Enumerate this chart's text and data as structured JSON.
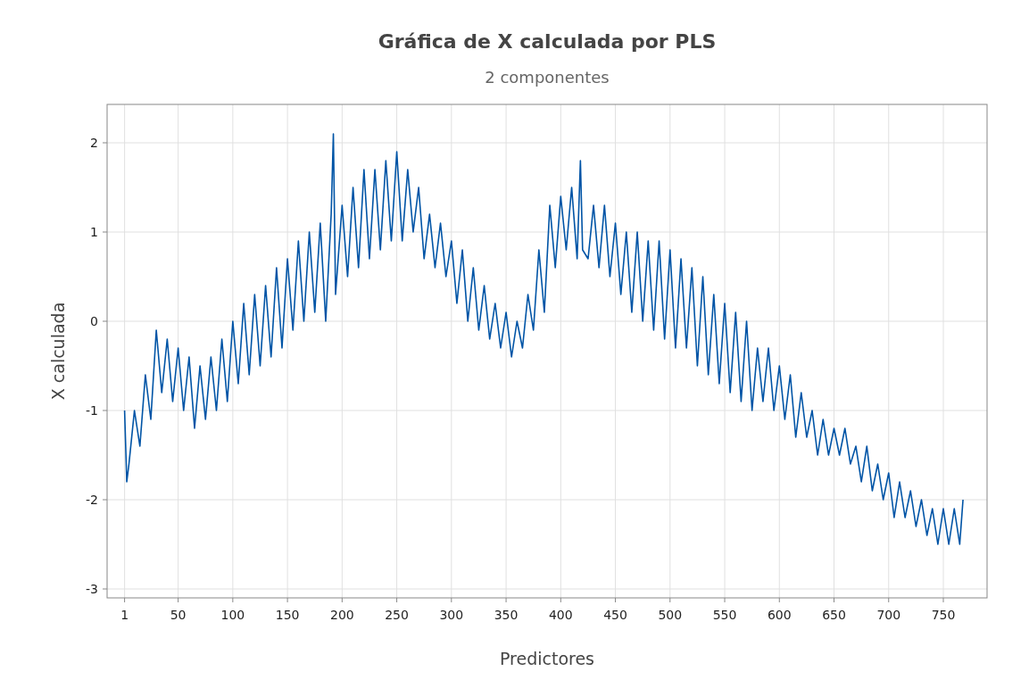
{
  "chart_data": {
    "type": "line",
    "title": "Gráfica de X calculada por PLS",
    "subtitle": "2 componentes",
    "xlabel": "Predictores",
    "ylabel": "X calculada",
    "xlim": [
      -15,
      790
    ],
    "ylim": [
      -3.1,
      2.43
    ],
    "xticks": [
      1,
      50,
      100,
      150,
      200,
      250,
      300,
      350,
      400,
      450,
      500,
      550,
      600,
      650,
      700,
      750
    ],
    "yticks": [
      -3,
      -2,
      -1,
      0,
      1,
      2
    ],
    "grid": true,
    "marker": "none",
    "series": [
      {
        "color": "#0054a6",
        "x": [
          1,
          3,
          5,
          10,
          15,
          20,
          25,
          30,
          35,
          40,
          45,
          50,
          55,
          60,
          65,
          70,
          75,
          80,
          85,
          90,
          95,
          100,
          105,
          110,
          115,
          120,
          125,
          130,
          135,
          140,
          145,
          150,
          155,
          160,
          165,
          170,
          175,
          180,
          185,
          190,
          192,
          194,
          200,
          205,
          210,
          215,
          220,
          225,
          230,
          235,
          240,
          245,
          250,
          255,
          260,
          265,
          270,
          275,
          280,
          285,
          290,
          295,
          300,
          305,
          310,
          315,
          320,
          325,
          330,
          335,
          340,
          345,
          350,
          355,
          360,
          365,
          370,
          375,
          380,
          385,
          390,
          395,
          400,
          405,
          410,
          415,
          418,
          420,
          425,
          430,
          435,
          440,
          445,
          450,
          455,
          460,
          465,
          470,
          475,
          480,
          485,
          490,
          495,
          500,
          505,
          510,
          515,
          520,
          525,
          530,
          535,
          540,
          545,
          550,
          555,
          560,
          565,
          570,
          575,
          580,
          585,
          590,
          595,
          600,
          605,
          610,
          615,
          620,
          625,
          630,
          635,
          640,
          645,
          650,
          655,
          660,
          665,
          670,
          675,
          680,
          685,
          690,
          695,
          700,
          705,
          710,
          715,
          720,
          725,
          730,
          735,
          740,
          745,
          750,
          755,
          760,
          765,
          768
        ],
        "values": [
          -1.0,
          -1.8,
          -1.6,
          -1.0,
          -1.4,
          -0.6,
          -1.1,
          -0.1,
          -0.8,
          -0.2,
          -0.9,
          -0.3,
          -1.0,
          -0.4,
          -1.2,
          -0.5,
          -1.1,
          -0.4,
          -1.0,
          -0.2,
          -0.9,
          0.0,
          -0.7,
          0.2,
          -0.6,
          0.3,
          -0.5,
          0.4,
          -0.4,
          0.6,
          -0.3,
          0.7,
          -0.1,
          0.9,
          0.0,
          1.0,
          0.1,
          1.1,
          0.0,
          1.2,
          2.1,
          0.3,
          1.3,
          0.5,
          1.5,
          0.6,
          1.7,
          0.7,
          1.7,
          0.8,
          1.8,
          0.9,
          1.9,
          0.9,
          1.7,
          1.0,
          1.5,
          0.7,
          1.2,
          0.6,
          1.1,
          0.5,
          0.9,
          0.2,
          0.8,
          0.0,
          0.6,
          -0.1,
          0.4,
          -0.2,
          0.2,
          -0.3,
          0.1,
          -0.4,
          0.0,
          -0.3,
          0.3,
          -0.1,
          0.8,
          0.1,
          1.3,
          0.6,
          1.4,
          0.8,
          1.5,
          0.7,
          1.8,
          0.8,
          0.7,
          1.3,
          0.6,
          1.3,
          0.5,
          1.1,
          0.3,
          1.0,
          0.1,
          1.0,
          0.0,
          0.9,
          -0.1,
          0.9,
          -0.2,
          0.8,
          -0.3,
          0.7,
          -0.3,
          0.6,
          -0.5,
          0.5,
          -0.6,
          0.3,
          -0.7,
          0.2,
          -0.8,
          0.1,
          -0.9,
          0.0,
          -1.0,
          -0.3,
          -0.9,
          -0.3,
          -1.0,
          -0.5,
          -1.1,
          -0.6,
          -1.3,
          -0.8,
          -1.3,
          -1.0,
          -1.5,
          -1.1,
          -1.5,
          -1.2,
          -1.5,
          -1.2,
          -1.6,
          -1.4,
          -1.8,
          -1.4,
          -1.9,
          -1.6,
          -2.0,
          -1.7,
          -2.2,
          -1.8,
          -2.2,
          -1.9,
          -2.3,
          -2.0,
          -2.4,
          -2.1,
          -2.5,
          -2.1,
          -2.5,
          -2.1,
          -2.5,
          -2.0
        ]
      }
    ]
  }
}
